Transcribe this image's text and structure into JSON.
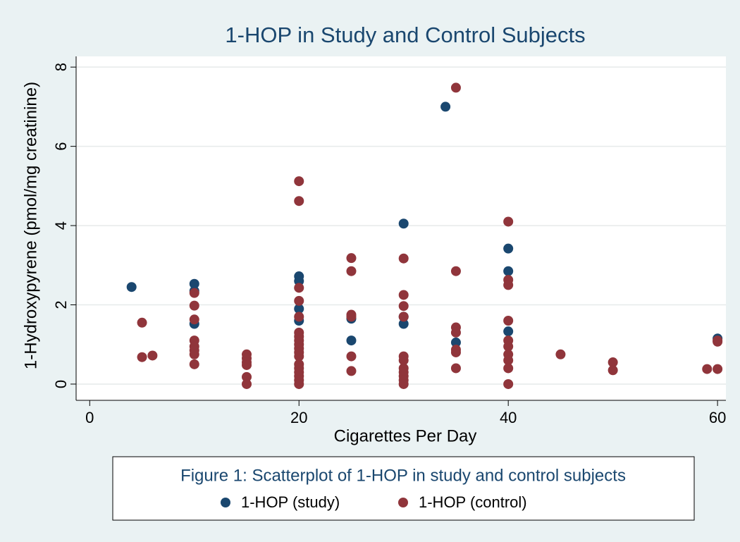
{
  "chart_data": {
    "type": "scatter",
    "title": "1-HOP in Study and Control Subjects",
    "xlabel": "Cigarettes Per Day",
    "ylabel": "1-Hydroxypyrene (pmol/mg creatinine)",
    "legend_title": "Figure 1: Scatterplot of 1-HOP in study and control subjects",
    "legend": "bottom",
    "grid": true,
    "xlim": [
      -1.3,
      60.8
    ],
    "xticks": [
      0,
      20,
      40,
      60
    ],
    "ylim": [
      -0.41,
      8.27
    ],
    "yticks": [
      0,
      2,
      4,
      6,
      8
    ],
    "series": [
      {
        "name": "1-HOP (study)",
        "color": "#1a476f",
        "x": [
          4,
          10,
          10,
          10,
          20,
          20,
          20,
          20,
          25,
          25,
          30,
          30,
          30,
          34,
          35,
          40,
          40,
          40,
          60
        ],
        "values": [
          2.45,
          2.53,
          2.35,
          1.52,
          2.72,
          2.6,
          1.9,
          1.6,
          1.65,
          1.1,
          4.05,
          1.52,
          1.7,
          7.0,
          1.05,
          3.42,
          2.85,
          1.33,
          1.15
        ]
      },
      {
        "name": "1-HOP (control)",
        "color": "#90353b",
        "x": [
          5,
          5,
          6,
          10,
          10,
          10,
          10,
          10,
          10,
          10,
          10,
          15,
          15,
          15,
          15,
          15,
          15,
          20,
          20,
          20,
          20,
          20,
          20,
          20,
          20,
          20,
          20,
          20,
          20,
          20,
          20,
          20,
          20,
          20,
          20,
          25,
          25,
          25,
          25,
          25,
          25,
          30,
          30,
          30,
          30,
          30,
          30,
          30,
          30,
          30,
          30,
          30,
          35,
          35,
          35,
          35,
          35,
          35,
          35,
          40,
          40,
          40,
          40,
          40,
          40,
          40,
          40,
          40,
          40,
          45,
          50,
          50,
          59,
          60,
          60,
          60
        ],
        "values": [
          1.55,
          0.68,
          0.72,
          2.3,
          1.98,
          1.63,
          1.1,
          0.95,
          0.85,
          0.75,
          0.5,
          0.75,
          0.65,
          0.55,
          0.48,
          0.18,
          0,
          5.12,
          4.62,
          2.43,
          2.1,
          1.7,
          1.3,
          1.2,
          1.1,
          1.0,
          0.9,
          0.8,
          0.7,
          0.5,
          0.4,
          0.3,
          0.2,
          0.1,
          0,
          3.18,
          2.85,
          1.75,
          1.7,
          0.7,
          0.33,
          3.17,
          2.25,
          1.97,
          1.7,
          0.7,
          0.6,
          0.4,
          0.3,
          0.2,
          0.1,
          0,
          7.48,
          2.85,
          1.43,
          1.3,
          0.87,
          0.8,
          0.4,
          4.1,
          2.63,
          2.5,
          1.6,
          1.1,
          0.95,
          0.75,
          0.6,
          0.4,
          0,
          0.75,
          0.55,
          0.35,
          0.38,
          1.1,
          1.07,
          0.38
        ]
      }
    ]
  }
}
